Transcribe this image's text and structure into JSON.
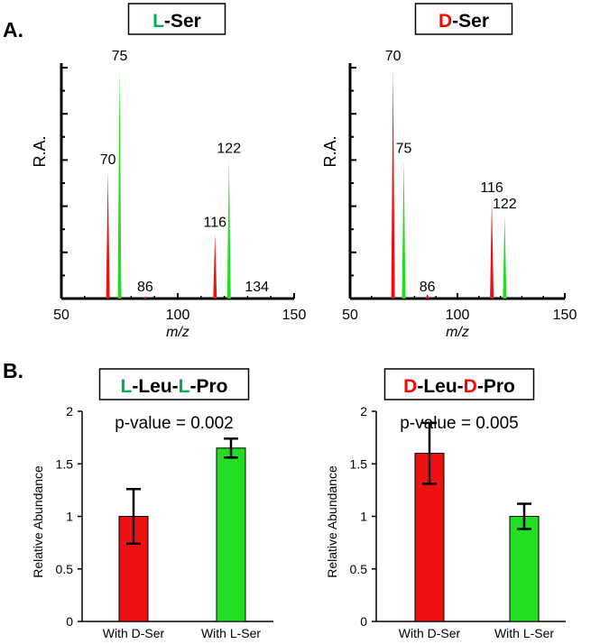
{
  "panels": {
    "A": {
      "label": "A."
    },
    "B": {
      "label": "B."
    }
  },
  "colors": {
    "red": "#ee1111",
    "green": "#22dd22",
    "L": "#00b050",
    "D": "#ff0000",
    "axis": "#000000",
    "err": "#000000"
  },
  "chart_data": [
    {
      "type": "spectrum",
      "id": "A-left",
      "title": {
        "letter": "L",
        "rest": "-Ser",
        "letter_color": "L"
      },
      "xlabel": "m/z",
      "ylabel": "R.A.",
      "xlim": [
        50,
        150
      ],
      "xticks": [
        50,
        100,
        150
      ],
      "ylim": [
        0,
        100
      ],
      "y_tick_count": 6,
      "peaks": [
        {
          "mz": 70,
          "intensity": 55,
          "label": "70",
          "color": "red"
        },
        {
          "mz": 75,
          "intensity": 100,
          "label": "75",
          "color": "green"
        },
        {
          "mz": 86,
          "intensity": 1,
          "label": "86",
          "color": "red"
        },
        {
          "mz": 116,
          "intensity": 28,
          "label": "116",
          "color": "red"
        },
        {
          "mz": 122,
          "intensity": 60,
          "label": "122",
          "color": "green"
        },
        {
          "mz": 134,
          "intensity": 0,
          "label": "134",
          "color": "green"
        }
      ]
    },
    {
      "type": "spectrum",
      "id": "A-right",
      "title": {
        "letter": "D",
        "rest": "-Ser",
        "letter_color": "D"
      },
      "xlabel": "m/z",
      "ylabel": "R.A.",
      "xlim": [
        50,
        150
      ],
      "xticks": [
        50,
        100,
        150
      ],
      "ylim": [
        0,
        100
      ],
      "y_tick_count": 6,
      "peaks": [
        {
          "mz": 70,
          "intensity": 100,
          "label": "70",
          "color": "red"
        },
        {
          "mz": 75,
          "intensity": 60,
          "label": "75",
          "color": "green"
        },
        {
          "mz": 86,
          "intensity": 2,
          "label": "86",
          "color": "red"
        },
        {
          "mz": 116,
          "intensity": 43,
          "label": "116",
          "color": "red"
        },
        {
          "mz": 122,
          "intensity": 36,
          "label": "122",
          "color": "green"
        }
      ]
    },
    {
      "type": "bar",
      "id": "B-left",
      "title": {
        "parts": [
          {
            "text": "L",
            "color": "L"
          },
          {
            "text": "-Leu-",
            "color": "black"
          },
          {
            "text": "L",
            "color": "L"
          },
          {
            "text": "-Pro",
            "color": "black"
          }
        ]
      },
      "pvalue": "p-value = 0.002",
      "ylabel": "Relative Abundance",
      "ylim": [
        0,
        2
      ],
      "yticks": [
        0,
        0.5,
        1,
        1.5,
        2
      ],
      "ytick_labels": [
        "0",
        "0.5",
        "1",
        "1.5",
        "2"
      ],
      "categories": [
        "With D-Ser",
        "With L-Ser"
      ],
      "values": [
        1.0,
        1.65
      ],
      "errors": [
        0.26,
        0.09
      ],
      "bar_colors": [
        "red",
        "green"
      ]
    },
    {
      "type": "bar",
      "id": "B-right",
      "title": {
        "parts": [
          {
            "text": "D",
            "color": "D"
          },
          {
            "text": "-Leu-",
            "color": "black"
          },
          {
            "text": "D",
            "color": "D"
          },
          {
            "text": "-Pro",
            "color": "black"
          }
        ]
      },
      "pvalue": "p-value = 0.005",
      "ylabel": "Relative Abundance",
      "ylim": [
        0,
        2
      ],
      "yticks": [
        0,
        0.5,
        1,
        1.5,
        2
      ],
      "ytick_labels": [
        "0",
        "0.5",
        "1",
        "1.5",
        "2"
      ],
      "categories": [
        "With D-Ser",
        "With L-Ser"
      ],
      "values": [
        1.6,
        1.0
      ],
      "errors": [
        0.29,
        0.12
      ],
      "bar_colors": [
        "red",
        "green"
      ]
    }
  ]
}
